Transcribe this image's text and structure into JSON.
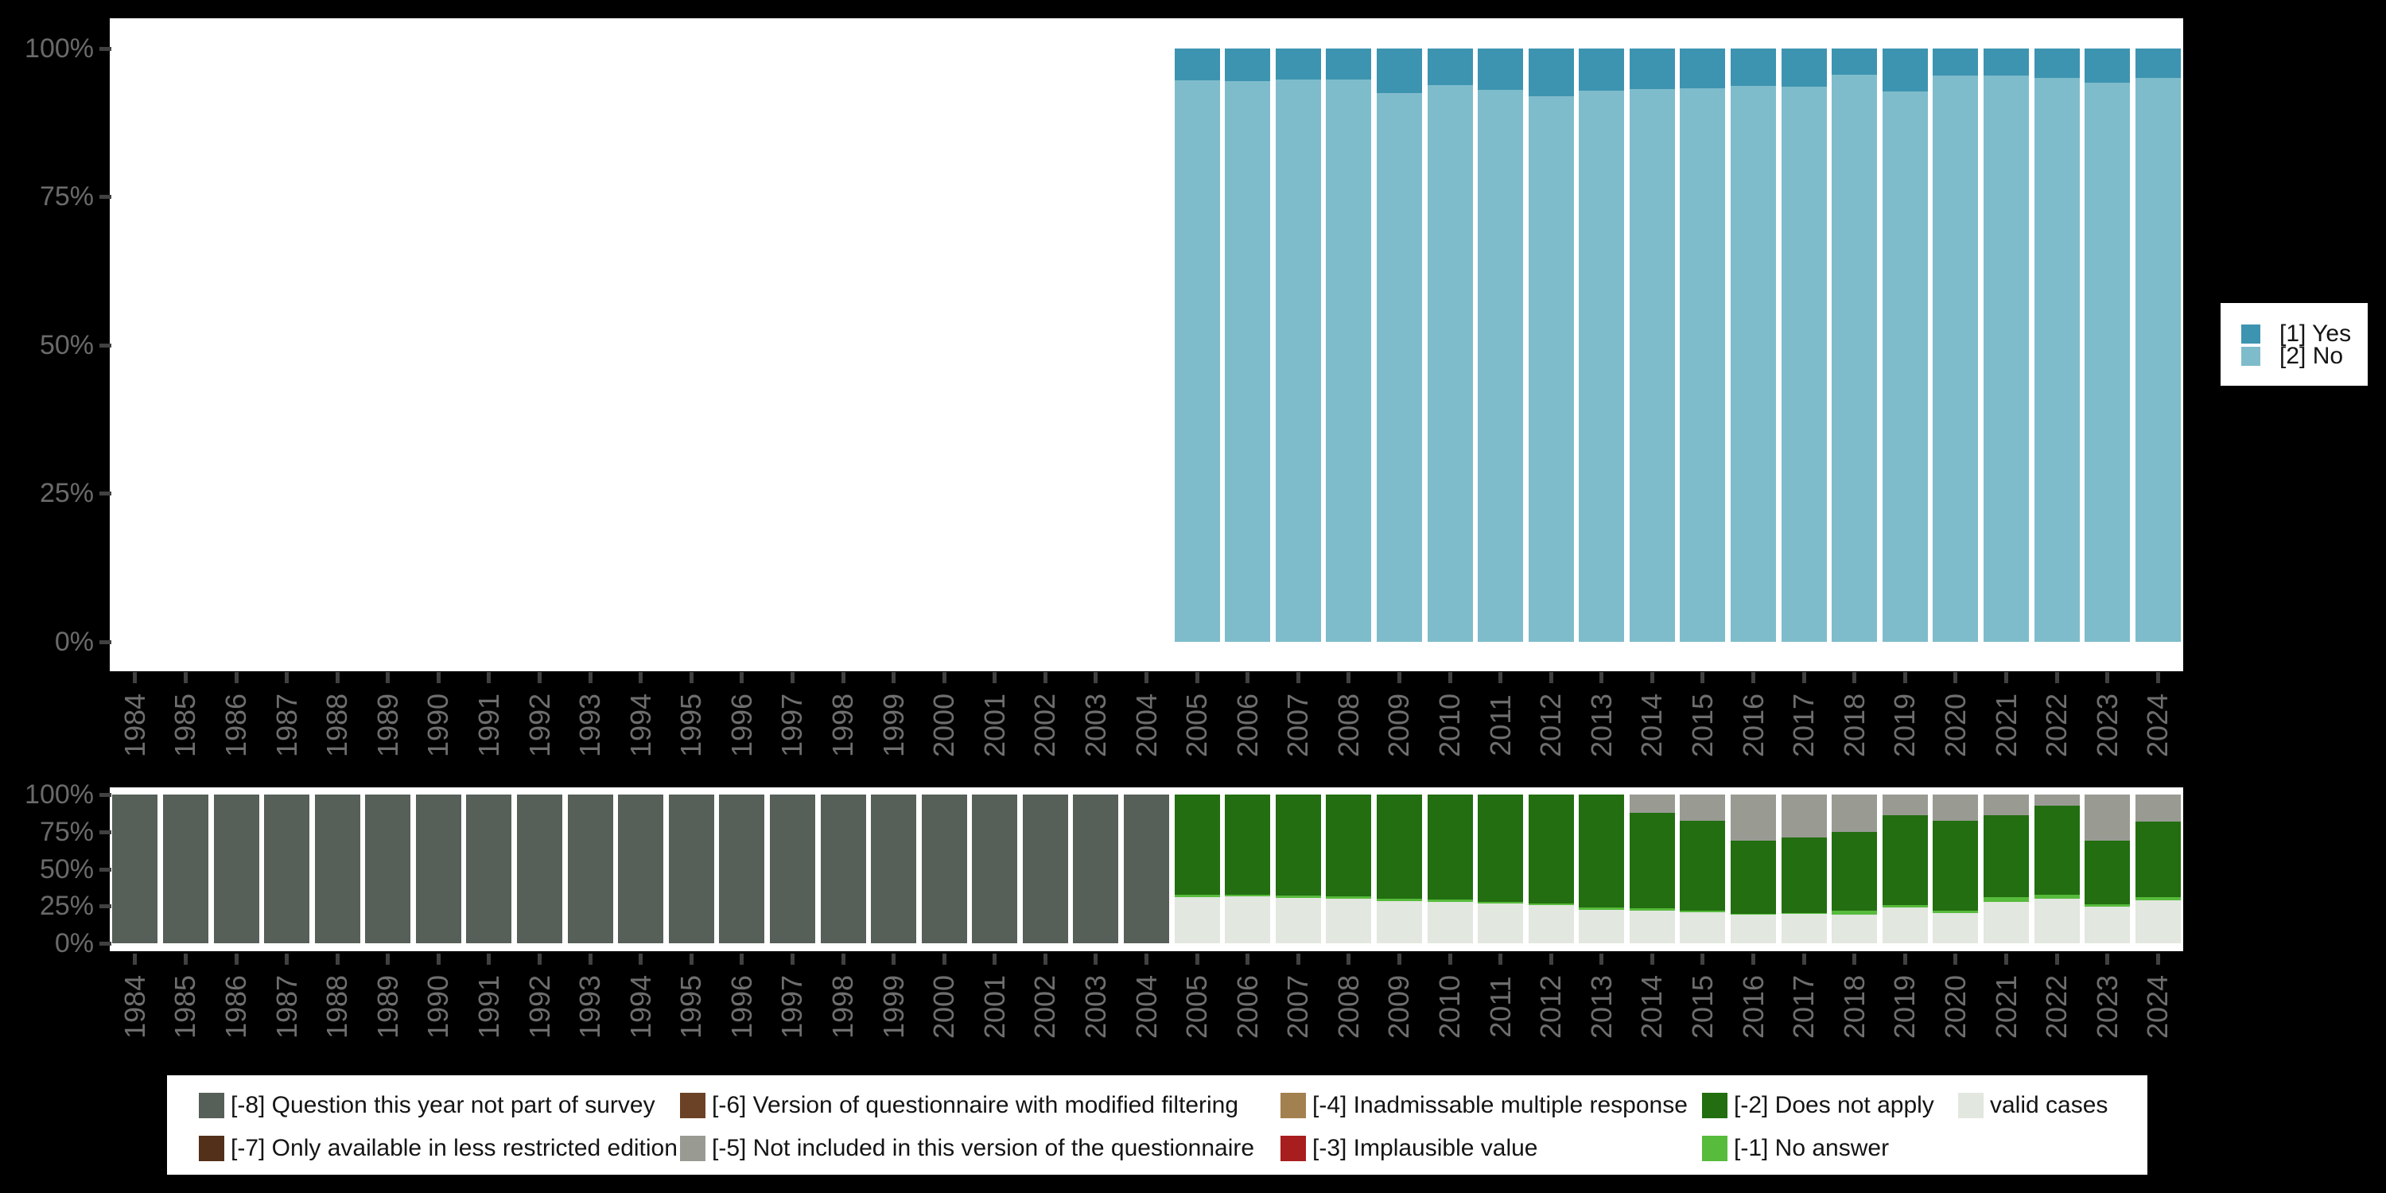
{
  "background": "#000000",
  "colors": {
    "yes": "#3d94b0",
    "no": "#7fbccb",
    "notPart": "#565f58",
    "lessRestricted": "#53301a",
    "modifiedFiltering": "#6b4226",
    "notIncluded": "#999b93",
    "multipleResponse": "#a3804f",
    "implausible": "#a81d1d",
    "doesNotApply": "#226e10",
    "noAnswer": "#57bb3c",
    "valid": "#e2e7e0",
    "panel": "#ffffff",
    "axis_text": "#6a6a6a",
    "tick": "#414141"
  },
  "axis": {
    "y_tick_labels": [
      "100%",
      "75%",
      "50%",
      "25%",
      "0%"
    ],
    "years": [
      1984,
      1985,
      1986,
      1987,
      1988,
      1989,
      1990,
      1991,
      1992,
      1993,
      1994,
      1995,
      1996,
      1997,
      1998,
      1999,
      2000,
      2001,
      2002,
      2003,
      2004,
      2005,
      2006,
      2007,
      2008,
      2009,
      2010,
      2011,
      2012,
      2013,
      2014,
      2015,
      2016,
      2017,
      2018,
      2019,
      2020,
      2021,
      2022,
      2023,
      2024
    ]
  },
  "top_legend": {
    "items": [
      {
        "label": "[1] Yes",
        "color_key": "yes"
      },
      {
        "label": "[2] No",
        "color_key": "no"
      }
    ]
  },
  "bottom_legend": {
    "items": [
      {
        "label": "[-8] Question this year not part of survey",
        "color_key": "notPart"
      },
      {
        "label": "[-7] Only available in less restricted edition",
        "color_key": "lessRestricted"
      },
      {
        "label": "[-6] Version of questionnaire with modified filtering",
        "color_key": "modifiedFiltering"
      },
      {
        "label": "[-5] Not included in this version of the questionnaire",
        "color_key": "notIncluded"
      },
      {
        "label": "[-4] Inadmissable multiple response",
        "color_key": "multipleResponse"
      },
      {
        "label": "[-3] Implausible value",
        "color_key": "implausible"
      },
      {
        "label": "[-2] Does not apply",
        "color_key": "doesNotApply"
      },
      {
        "label": "[-1] No answer",
        "color_key": "noAnswer"
      },
      {
        "label": "valid cases",
        "color_key": "valid"
      }
    ]
  },
  "chart_data": [
    {
      "type": "bar",
      "stacked": true,
      "title": "",
      "xlabel": "",
      "ylabel": "",
      "ylim": [
        0,
        100
      ],
      "grid": false,
      "legend_position": "right",
      "y_ticks": [
        "0%",
        "25%",
        "50%",
        "75%",
        "100%"
      ],
      "x": [
        1984,
        1985,
        1986,
        1987,
        1988,
        1989,
        1990,
        1991,
        1992,
        1993,
        1994,
        1995,
        1996,
        1997,
        1998,
        1999,
        2000,
        2001,
        2002,
        2003,
        2004,
        2005,
        2006,
        2007,
        2008,
        2009,
        2010,
        2011,
        2012,
        2013,
        2014,
        2015,
        2016,
        2017,
        2018,
        2019,
        2020,
        2021,
        2022,
        2023,
        2024
      ],
      "series": [
        {
          "name": "[1] Yes",
          "color": "#3d94b0",
          "stack_index": 1,
          "values": [
            null,
            null,
            null,
            null,
            null,
            null,
            null,
            null,
            null,
            null,
            null,
            null,
            null,
            null,
            null,
            null,
            null,
            null,
            null,
            null,
            null,
            5.4,
            5.5,
            5.2,
            5.2,
            7.5,
            6.1,
            6.9,
            8.1,
            7.1,
            6.8,
            6.7,
            6.3,
            6.4,
            4.4,
            7.2,
            4.6,
            4.5,
            4.9,
            5.7,
            5.0
          ]
        },
        {
          "name": "[2] No",
          "color": "#7fbccb",
          "stack_index": 0,
          "values": [
            null,
            null,
            null,
            null,
            null,
            null,
            null,
            null,
            null,
            null,
            null,
            null,
            null,
            null,
            null,
            null,
            null,
            null,
            null,
            null,
            null,
            94.6,
            94.5,
            94.8,
            94.8,
            92.5,
            93.9,
            93.1,
            91.9,
            92.9,
            93.2,
            93.3,
            93.7,
            93.6,
            95.6,
            92.8,
            95.4,
            95.5,
            95.1,
            94.3,
            95.0
          ]
        }
      ]
    },
    {
      "type": "bar",
      "stacked": true,
      "title": "",
      "xlabel": "",
      "ylabel": "",
      "ylim": [
        0,
        100
      ],
      "grid": false,
      "legend_position": "bottom",
      "y_ticks": [
        "0%",
        "25%",
        "50%",
        "75%",
        "100%"
      ],
      "x": [
        1984,
        1985,
        1986,
        1987,
        1988,
        1989,
        1990,
        1991,
        1992,
        1993,
        1994,
        1995,
        1996,
        1997,
        1998,
        1999,
        2000,
        2001,
        2002,
        2003,
        2004,
        2005,
        2006,
        2007,
        2008,
        2009,
        2010,
        2011,
        2012,
        2013,
        2014,
        2015,
        2016,
        2017,
        2018,
        2019,
        2020,
        2021,
        2022,
        2023,
        2024
      ],
      "series": [
        {
          "name": "valid cases",
          "color": "#e2e7e0",
          "stack_index": 0,
          "values": [
            0,
            0,
            0,
            0,
            0,
            0,
            0,
            0,
            0,
            0,
            0,
            0,
            0,
            0,
            0,
            0,
            0,
            0,
            0,
            0,
            0,
            31,
            31.5,
            30.5,
            30,
            28.5,
            28,
            26.5,
            25.5,
            22.5,
            22,
            21,
            19.5,
            20,
            19.5,
            24,
            20.5,
            28,
            30,
            24.5,
            29
          ]
        },
        {
          "name": "[-1] No answer",
          "color": "#57bb3c",
          "stack_index": 1,
          "values": [
            0,
            0,
            0,
            0,
            0,
            0,
            0,
            0,
            0,
            0,
            0,
            0,
            0,
            0,
            0,
            0,
            0,
            0,
            0,
            0,
            0,
            1.5,
            1,
            1.5,
            1.5,
            1.5,
            1.5,
            1.5,
            1,
            1.5,
            1.5,
            1,
            0.5,
            0.5,
            2.5,
            1.5,
            1.5,
            3,
            2.5,
            2,
            2
          ]
        },
        {
          "name": "[-2] Does not apply",
          "color": "#226e10",
          "stack_index": 2,
          "values": [
            0,
            0,
            0,
            0,
            0,
            0,
            0,
            0,
            0,
            0,
            0,
            0,
            0,
            0,
            0,
            0,
            0,
            0,
            0,
            0,
            0,
            67.5,
            67.5,
            68,
            68.5,
            70,
            70.5,
            72,
            73.5,
            76,
            64,
            60.5,
            49,
            50.5,
            53,
            60.5,
            60.5,
            55,
            60,
            42.5,
            51
          ]
        },
        {
          "name": "[-5] Not included in this version of the questionnaire",
          "color": "#999b93",
          "stack_index": 3,
          "values": [
            0,
            0,
            0,
            0,
            0,
            0,
            0,
            0,
            0,
            0,
            0,
            0,
            0,
            0,
            0,
            0,
            0,
            0,
            0,
            0,
            0,
            0,
            0,
            0,
            0,
            0,
            0,
            0,
            0,
            0,
            12.5,
            17.5,
            31,
            29,
            25,
            14,
            17.5,
            14,
            7.5,
            31,
            18
          ]
        },
        {
          "name": "[-8] Question this year not part of survey",
          "color": "#565f58",
          "stack_index": 4,
          "values": [
            100,
            100,
            100,
            100,
            100,
            100,
            100,
            100,
            100,
            100,
            100,
            100,
            100,
            100,
            100,
            100,
            100,
            100,
            100,
            100,
            100,
            0,
            0,
            0,
            0,
            0,
            0,
            0,
            0,
            0,
            0,
            0,
            0,
            0,
            0,
            0,
            0,
            0,
            0,
            0,
            0
          ]
        }
      ]
    }
  ]
}
